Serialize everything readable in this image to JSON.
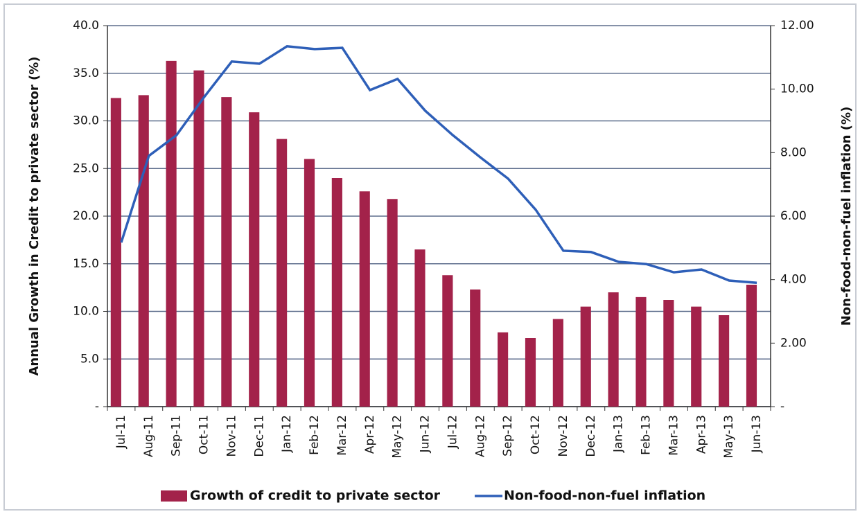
{
  "chart_data": {
    "type": "bar_line",
    "y_label": "Annual Growth in Credit to private sector  (%)",
    "y2_label": "Non-food-non-fuel inflation (%)",
    "categories": [
      "Jul-11",
      "Aug-11",
      "Sep-11",
      "Oct-11",
      "Nov-11",
      "Dec-11",
      "Jan-12",
      "Feb-12",
      "Mar-12",
      "Apr-12",
      "May-12",
      "Jun-12",
      "Jul-12",
      "Aug-12",
      "Sep-12",
      "Oct-12",
      "Nov-12",
      "Dec-12",
      "Jan-13",
      "Feb-13",
      "Mar-13",
      "Apr-13",
      "May-13",
      "Jun-13"
    ],
    "series": [
      {
        "name": "Growth of credit to private sector",
        "type": "bar",
        "color": "#a3224a",
        "values": [
          32.4,
          32.7,
          36.3,
          35.3,
          32.5,
          30.9,
          28.1,
          26.0,
          24.0,
          22.6,
          21.8,
          16.5,
          13.8,
          12.3,
          7.8,
          7.2,
          9.2,
          10.5,
          12.0,
          11.5,
          11.2,
          10.5,
          9.6,
          12.8
        ]
      },
      {
        "name": "Non-food-non-fuel inflation",
        "type": "line",
        "axis": "y2",
        "color": "#2e5fb8",
        "values": [
          5.17,
          7.9,
          8.55,
          9.75,
          10.87,
          10.8,
          11.35,
          11.26,
          11.3,
          9.97,
          10.32,
          9.32,
          8.55,
          7.85,
          7.18,
          6.2,
          4.91,
          4.87,
          4.56,
          4.49,
          4.23,
          4.32,
          3.97,
          3.9
        ]
      }
    ],
    "ylim": [
      0,
      40
    ],
    "yticks": [
      {
        "value": 0,
        "label": "-"
      },
      {
        "value": 5,
        "label": "5.0"
      },
      {
        "value": 10,
        "label": "10.0"
      },
      {
        "value": 15,
        "label": "15.0"
      },
      {
        "value": 20,
        "label": "20.0"
      },
      {
        "value": 25,
        "label": "25.0"
      },
      {
        "value": 30,
        "label": "30.0"
      },
      {
        "value": 35,
        "label": "35.0"
      },
      {
        "value": 40,
        "label": "40.0"
      }
    ],
    "y2lim": [
      0,
      12
    ],
    "y2ticks": [
      {
        "value": 0,
        "label": "-"
      },
      {
        "value": 2,
        "label": "2.00"
      },
      {
        "value": 4,
        "label": "4.00"
      },
      {
        "value": 6,
        "label": "6.00"
      },
      {
        "value": 8,
        "label": "8.00"
      },
      {
        "value": 10,
        "label": "10.00"
      },
      {
        "value": 12,
        "label": "12.00"
      }
    ],
    "grid": true
  }
}
